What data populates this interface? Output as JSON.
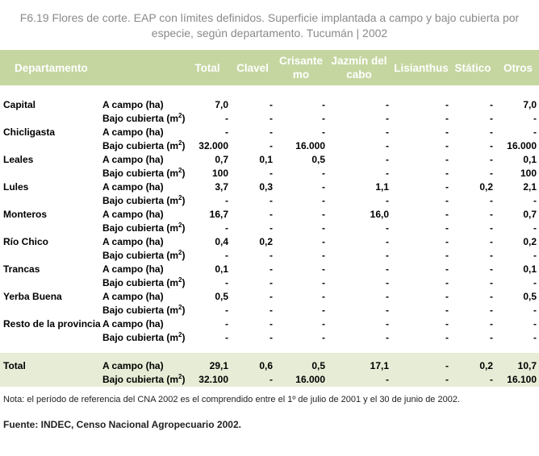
{
  "title": {
    "line1": "F6.19 Flores de corte. EAP con límites definidos. Superficie implantada a campo y bajo cubierta por",
    "line2": "especie, según departamento. Tucumán | 2002"
  },
  "headers": [
    "Departamento",
    "",
    "Total",
    "Clavel",
    "Crisante\nmo",
    "Jazmín del\ncabo",
    "Lisianthus",
    "Stático",
    "Otros"
  ],
  "row_types": {
    "campo": "A campo (ha)",
    "cubierta": "Bajo cubierta (m",
    "cubierta_sup": "2",
    "cubierta_close": ")"
  },
  "departments": [
    {
      "name": "Capital",
      "campo": [
        "7,0",
        "-",
        "-",
        "-",
        "-",
        "-",
        "7,0"
      ],
      "cubierta": [
        "-",
        "-",
        "-",
        "-",
        "-",
        "-",
        "-"
      ]
    },
    {
      "name": "Chicligasta",
      "campo": [
        "-",
        "-",
        "-",
        "-",
        "-",
        "-",
        "-"
      ],
      "cubierta": [
        "32.000",
        "-",
        "16.000",
        "-",
        "-",
        "-",
        "16.000"
      ]
    },
    {
      "name": "Leales",
      "campo": [
        "0,7",
        "0,1",
        "0,5",
        "-",
        "-",
        "-",
        "0,1"
      ],
      "cubierta": [
        "100",
        "-",
        "-",
        "-",
        "-",
        "-",
        "100"
      ]
    },
    {
      "name": "Lules",
      "campo": [
        "3,7",
        "0,3",
        "-",
        "1,1",
        "-",
        "0,2",
        "2,1"
      ],
      "cubierta": [
        "-",
        "-",
        "-",
        "-",
        "-",
        "-",
        "-"
      ]
    },
    {
      "name": "Monteros",
      "campo": [
        "16,7",
        "-",
        "-",
        "16,0",
        "-",
        "-",
        "0,7"
      ],
      "cubierta": [
        "-",
        "-",
        "-",
        "-",
        "-",
        "-",
        "-"
      ]
    },
    {
      "name": "Río Chico",
      "campo": [
        "0,4",
        "0,2",
        "-",
        "-",
        "-",
        "-",
        "0,2"
      ],
      "cubierta": [
        "-",
        "-",
        "-",
        "-",
        "-",
        "-",
        "-"
      ]
    },
    {
      "name": "Trancas",
      "campo": [
        "0,1",
        "-",
        "-",
        "-",
        "-",
        "-",
        "0,1"
      ],
      "cubierta": [
        "-",
        "-",
        "-",
        "-",
        "-",
        "-",
        "-"
      ]
    },
    {
      "name": "Yerba Buena",
      "campo": [
        "0,5",
        "-",
        "-",
        "-",
        "-",
        "-",
        "0,5"
      ],
      "cubierta": [
        "-",
        "-",
        "-",
        "-",
        "-",
        "-",
        "-"
      ]
    },
    {
      "name": "Resto de la provincia",
      "campo": [
        "-",
        "-",
        "-",
        "-",
        "-",
        "-",
        "-"
      ],
      "cubierta": [
        "-",
        "-",
        "-",
        "-",
        "-",
        "-",
        "-"
      ]
    }
  ],
  "total": {
    "name": "Total",
    "campo": [
      "29,1",
      "0,6",
      "0,5",
      "17,1",
      "-",
      "0,2",
      "10,7"
    ],
    "cubierta": [
      "32.100",
      "-",
      "16.000",
      "-",
      "-",
      "-",
      "16.100"
    ]
  },
  "note": "Nota: el período de referencia del CNA 2002 es el comprendido entre el 1º de julio de 2001 y el 30 de junio de 2002.",
  "source": "Fuente: INDEC, Censo Nacional Agropecuario 2002.",
  "colors": {
    "header_bg": "#c5d6a0",
    "total_bg": "#e6ecd5",
    "title": "#8a8a8a"
  }
}
